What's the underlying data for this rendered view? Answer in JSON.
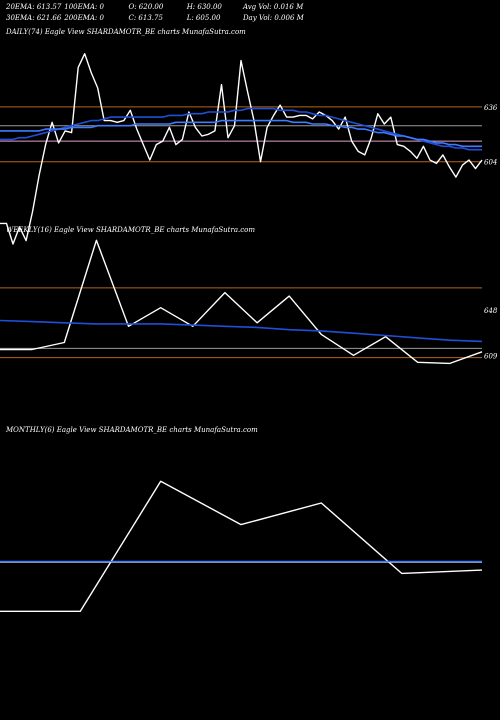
{
  "header": {
    "row1": [
      {
        "label": "20EMA: 613.57"
      },
      {
        "label": "100EMA: 0"
      },
      {
        "label": "O: 620.00"
      },
      {
        "label": "H: 630.00"
      },
      {
        "label": "Avg Vol: 0.016  M"
      }
    ],
    "row2": [
      {
        "label": "30EMA: 621.66"
      },
      {
        "label": "200EMA: 0"
      },
      {
        "label": "C: 613.75"
      },
      {
        "label": "L: 605.00"
      },
      {
        "label": "Day Vol: 0.006  M"
      }
    ]
  },
  "colors": {
    "background": "#000000",
    "price": "#ffffff",
    "ema": "#1f4fd8",
    "ema_light": "#3d7bff",
    "ref_orange": "#b5651d",
    "ref_pink": "#e0a0c8",
    "ref_grey": "#9a9a9a"
  },
  "chart_data": [
    {
      "type": "line",
      "title": "DAILY(74) Eagle  View  SHARDAMOTR_BE charts MunafaSutra.com",
      "ylim": [
        570,
        675
      ],
      "tick_labels": [
        {
          "value": 636,
          "label": "636"
        },
        {
          "value": 604,
          "label": "604"
        }
      ],
      "reference_lines": [
        {
          "value": 636,
          "color": "#b5651d"
        },
        {
          "value": 625,
          "color": "#9a9a9a"
        },
        {
          "value": 616,
          "color": "#e0a0c8"
        },
        {
          "value": 604,
          "color": "#b5651d"
        }
      ],
      "series": [
        {
          "role": "price",
          "color": "#ffffff",
          "values": [
            568,
            568,
            556,
            566,
            558,
            575,
            596,
            614,
            627,
            615,
            622,
            621,
            659,
            667,
            656,
            647,
            628,
            628,
            627,
            628,
            634,
            623,
            614,
            605,
            614,
            616,
            624,
            614,
            617,
            633,
            624,
            619,
            620,
            622,
            649,
            618,
            625,
            663,
            645,
            628,
            604,
            624,
            631,
            637,
            630,
            630,
            631,
            631,
            629,
            633,
            631,
            628,
            623,
            630,
            616,
            610,
            608,
            618,
            632,
            626,
            630,
            614,
            613,
            610,
            606,
            613,
            605,
            603,
            608,
            601,
            595,
            602,
            605,
            600,
            605
          ]
        },
        {
          "role": "ema",
          "color": "#1f4fd8",
          "values": [
            617,
            617,
            617,
            618,
            618,
            619,
            620,
            621,
            622,
            623,
            624,
            625,
            626,
            627,
            628,
            628,
            629,
            630,
            630,
            630,
            630,
            630,
            630,
            630,
            630,
            630,
            631,
            631,
            631,
            632,
            632,
            632,
            633,
            633,
            633,
            633,
            634,
            634,
            635,
            635,
            635,
            635,
            635,
            634,
            634,
            634,
            633,
            633,
            632,
            631,
            631,
            630,
            629,
            628,
            627,
            626,
            625,
            624,
            623,
            622,
            621,
            620,
            619,
            618,
            617,
            616,
            615,
            614,
            613,
            613,
            612,
            612,
            611,
            611,
            611
          ]
        },
        {
          "role": "ema2",
          "color": "#3d7bff",
          "values": [
            622,
            622,
            622,
            622,
            622,
            622,
            622,
            623,
            623,
            623,
            623,
            624,
            624,
            624,
            624,
            625,
            625,
            625,
            625,
            625,
            625,
            626,
            626,
            626,
            626,
            626,
            626,
            627,
            627,
            627,
            627,
            627,
            627,
            627,
            628,
            628,
            628,
            628,
            628,
            628,
            628,
            628,
            628,
            628,
            628,
            627,
            627,
            627,
            626,
            626,
            626,
            625,
            625,
            624,
            624,
            623,
            623,
            622,
            621,
            621,
            620,
            619,
            619,
            618,
            617,
            617,
            616,
            615,
            615,
            614,
            614,
            613,
            613,
            613,
            613
          ]
        }
      ]
    },
    {
      "type": "line",
      "title": "WEEKLY(16) Eagle  View  SHARDAMOTR_BE charts MunafaSutra.com",
      "ylim": [
        555,
        710
      ],
      "tick_labels": [
        {
          "value": 648,
          "label": "648"
        },
        {
          "value": 609,
          "label": "609"
        }
      ],
      "reference_lines": [
        {
          "value": 667,
          "color": "#b5651d"
        },
        {
          "value": 615,
          "color": "#9a9a9a"
        },
        {
          "value": 607,
          "color": "#b5651d"
        }
      ],
      "series": [
        {
          "role": "price",
          "color": "#ffffff",
          "values": [
            614,
            614,
            620,
            708,
            634,
            650,
            634,
            663,
            637,
            660,
            627,
            609,
            625,
            603,
            602,
            612
          ]
        },
        {
          "role": "ema",
          "color": "#1f4fd8",
          "values": [
            639,
            638,
            637,
            636,
            636,
            636,
            635,
            634,
            633,
            631,
            630,
            628,
            626,
            624,
            622,
            621
          ]
        }
      ]
    },
    {
      "type": "line",
      "title": "MONTHLY(6) Eagle  View  SHARDAMOTR_BE charts MunafaSutra.com",
      "ylim": [
        555,
        760
      ],
      "tick_labels": [],
      "reference_lines": [
        {
          "value": 645,
          "color": "#9a9a9a"
        }
      ],
      "series": [
        {
          "role": "price",
          "color": "#ffffff",
          "values": [
            600,
            600,
            720,
            680,
            700,
            635,
            638
          ]
        },
        {
          "role": "ema",
          "color": "#3d7bff",
          "values": [
            646,
            646,
            646,
            646,
            646,
            646,
            646
          ]
        }
      ]
    }
  ]
}
